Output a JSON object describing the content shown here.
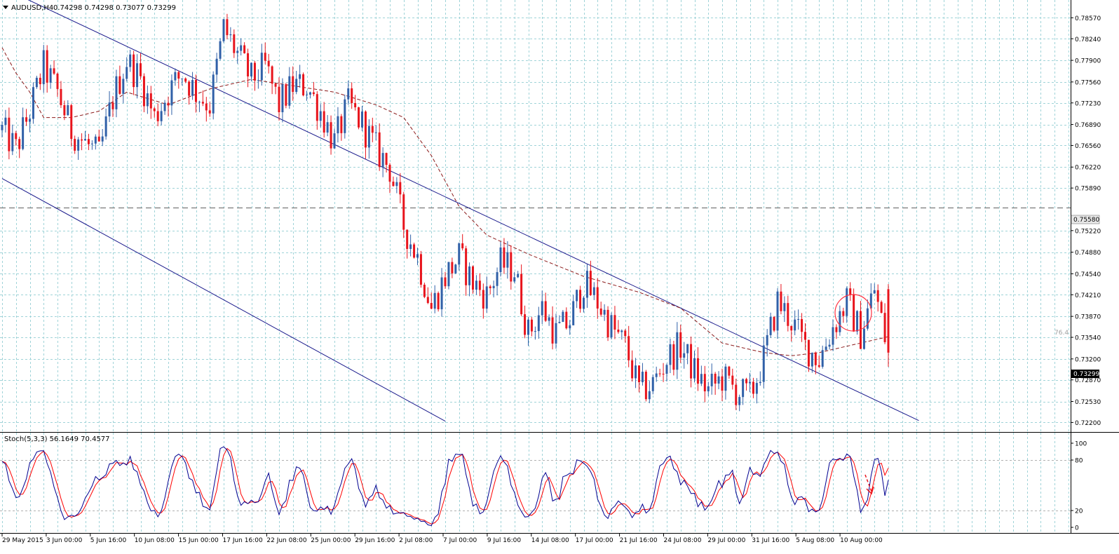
{
  "header": {
    "symbol": "AUDUSD,H4",
    "ohlc": "0.74298 0.74298 0.73077 0.73299"
  },
  "stoch_header": "Stoch(5,3,3) 56.1649 70.4577",
  "annotation_label": "76.4",
  "current_price_label": "0.73299",
  "hline_price_label": "0.75580",
  "colors": {
    "grid": "#9fd3d8",
    "bull": "#3060a8",
    "bear": "#e8141c",
    "ma": "#8b1a1a",
    "channel": "#1a1a8c",
    "hline": "#606060",
    "stoch_main": "#000090",
    "stoch_signal": "#ff0000",
    "highlight_circle": "#ff3040"
  },
  "chart_data": {
    "type": "candlestick",
    "symbol": "AUDUSD",
    "timeframe": "H4",
    "last_bar": {
      "open": 0.74298,
      "high": 0.74298,
      "low": 0.73077,
      "close": 0.73299
    },
    "ylim": [
      0.7205,
      0.7885
    ],
    "price_ticks": [
      "0.78570",
      "0.78240",
      "0.77900",
      "0.77560",
      "0.77230",
      "0.76890",
      "0.76560",
      "0.76220",
      "0.75890",
      "0.75220",
      "0.74880",
      "0.74540",
      "0.74210",
      "0.73870",
      "0.73540",
      "0.73200",
      "0.72870",
      "0.72530",
      "0.72200"
    ],
    "time_labels": [
      "29 May 2015",
      "3 Jun 00:00",
      "5 Jun 16:00",
      "10 Jun 08:00",
      "15 Jun 00:00",
      "17 Jun 16:00",
      "22 Jun 08:00",
      "25 Jun 00:00",
      "29 Jun 16:00",
      "2 Jul 08:00",
      "7 Jul 00:00",
      "9 Jul 16:00",
      "14 Jul 08:00",
      "17 Jul 00:00",
      "21 Jul 16:00",
      "24 Jul 08:00",
      "29 Jul 00:00",
      "31 Jul 16:00",
      "5 Aug 08:00",
      "10 Aug 00:00"
    ],
    "horizontal_level": 0.7558,
    "price_path_anchors": [
      [
        0,
        0.768
      ],
      [
        1,
        0.765
      ],
      [
        2,
        0.771
      ],
      [
        3,
        0.778
      ],
      [
        4,
        0.774
      ],
      [
        5,
        0.768
      ],
      [
        6,
        0.766
      ],
      [
        7,
        0.764
      ],
      [
        8,
        0.773
      ],
      [
        9,
        0.779
      ],
      [
        10,
        0.776
      ],
      [
        11,
        0.77
      ],
      [
        12,
        0.774
      ],
      [
        13,
        0.777
      ],
      [
        14,
        0.774
      ],
      [
        15,
        0.772
      ],
      [
        16,
        0.784
      ],
      [
        17,
        0.78
      ],
      [
        18,
        0.776
      ],
      [
        19,
        0.778
      ],
      [
        20,
        0.772
      ],
      [
        21,
        0.775
      ],
      [
        22,
        0.775
      ],
      [
        23,
        0.771
      ],
      [
        24,
        0.766
      ],
      [
        25,
        0.772
      ],
      [
        26,
        0.769
      ],
      [
        27,
        0.765
      ],
      [
        28,
        0.762
      ],
      [
        29,
        0.753
      ],
      [
        30,
        0.748
      ],
      [
        31,
        0.74
      ],
      [
        32,
        0.745
      ],
      [
        33,
        0.748
      ],
      [
        34,
        0.744
      ],
      [
        35,
        0.742
      ],
      [
        36,
        0.747
      ],
      [
        37,
        0.746
      ],
      [
        38,
        0.736
      ],
      [
        39,
        0.74
      ],
      [
        40,
        0.736
      ],
      [
        41,
        0.738
      ],
      [
        42,
        0.744
      ],
      [
        43,
        0.741
      ],
      [
        44,
        0.737
      ],
      [
        45,
        0.734
      ],
      [
        46,
        0.727
      ],
      [
        47,
        0.728
      ],
      [
        48,
        0.732
      ],
      [
        49,
        0.734
      ],
      [
        50,
        0.73
      ],
      [
        51,
        0.727
      ],
      [
        52,
        0.729
      ],
      [
        53,
        0.727
      ],
      [
        54,
        0.726
      ],
      [
        55,
        0.732
      ],
      [
        56,
        0.741
      ],
      [
        57,
        0.738
      ],
      [
        58,
        0.734
      ],
      [
        59,
        0.732
      ],
      [
        60,
        0.737
      ],
      [
        61,
        0.741
      ],
      [
        62,
        0.736
      ],
      [
        63,
        0.743
      ],
      [
        64,
        0.733
      ]
    ],
    "moving_average_anchors": [
      [
        0,
        0.781
      ],
      [
        1,
        0.777
      ],
      [
        2,
        0.774
      ],
      [
        3,
        0.77
      ],
      [
        5,
        0.77
      ],
      [
        7,
        0.771
      ],
      [
        9,
        0.774
      ],
      [
        12,
        0.772
      ],
      [
        15,
        0.7745
      ],
      [
        18,
        0.776
      ],
      [
        21,
        0.775
      ],
      [
        24,
        0.774
      ],
      [
        27,
        0.772
      ],
      [
        29,
        0.77
      ],
      [
        31,
        0.764
      ],
      [
        33,
        0.756
      ],
      [
        35,
        0.7515
      ],
      [
        38,
        0.7485
      ],
      [
        42,
        0.745
      ],
      [
        46,
        0.7425
      ],
      [
        49,
        0.74
      ],
      [
        52,
        0.7345
      ],
      [
        55,
        0.733
      ],
      [
        57,
        0.7325
      ],
      [
        59,
        0.733
      ],
      [
        61,
        0.734
      ],
      [
        63,
        0.735
      ],
      [
        64,
        0.7355
      ]
    ],
    "upper_channel_line": {
      "from": [
        -1,
        0.7915
      ],
      "to": [
        66.2,
        0.7223
      ]
    },
    "lower_channel_line": {
      "from": [
        0,
        0.7604
      ],
      "to": [
        32,
        0.7222
      ]
    },
    "stochastic": {
      "name": "Stoch(5,3,3)",
      "main": 56.1649,
      "signal": 70.4577,
      "levels": [
        80,
        20
      ],
      "scale_labels": [
        "100",
        "80",
        "20",
        "0"
      ]
    }
  }
}
